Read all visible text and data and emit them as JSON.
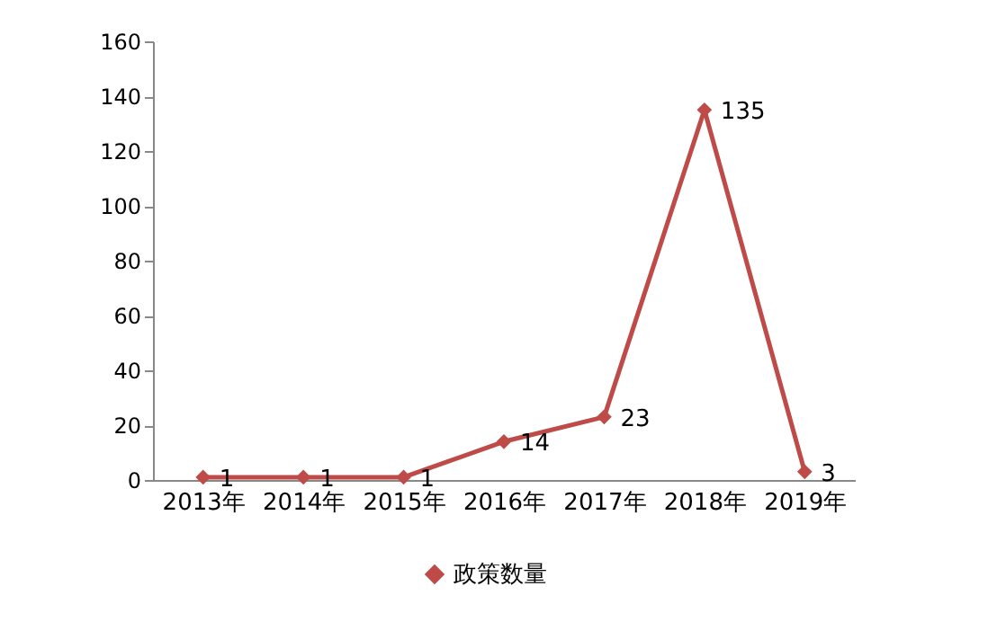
{
  "chart_data": {
    "type": "line",
    "categories": [
      "2013年",
      "2014年",
      "2015年",
      "2016年",
      "2017年",
      "2018年",
      "2019年"
    ],
    "series": [
      {
        "name": "政策数量",
        "color": "#be4b48",
        "values": [
          1,
          1,
          1,
          14,
          23,
          135,
          3
        ]
      }
    ],
    "ylim": [
      0,
      160
    ],
    "yticks": [
      0,
      20,
      40,
      60,
      80,
      100,
      120,
      140,
      160
    ],
    "grid": false,
    "legend": "bottom",
    "marker": "diamond",
    "line_style": "solid",
    "data_labels": true
  }
}
